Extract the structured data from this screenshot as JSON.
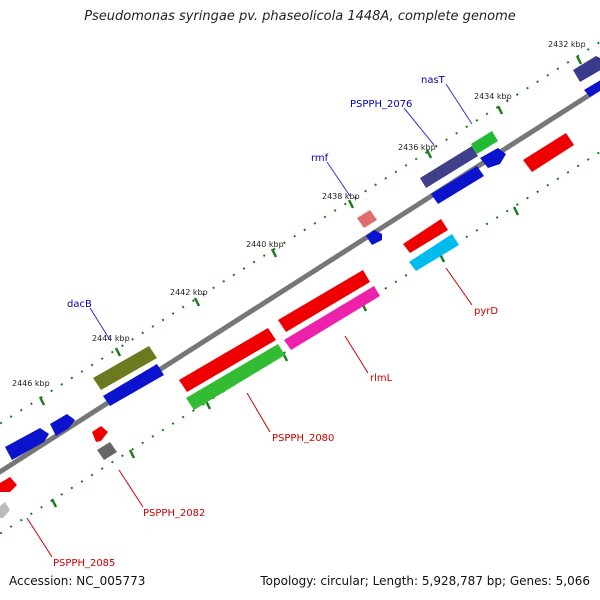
{
  "title": "Pseudomonas syringae pv. phaseolicola 1448A, complete genome",
  "footer": {
    "accession": "Accession: NC_005773",
    "summary": "Topology: circular; Length: 5,928,787 bp; Genes: 5,066"
  },
  "scale_labels": [
    "2432 kbp",
    "2434 kbp",
    "2436 kbp",
    "2438 kbp",
    "2440 kbp",
    "2442 kbp",
    "2444 kbp",
    "2446 kbp"
  ],
  "gene_labels": {
    "nasT": "nasT",
    "psspph_2076": "PSPPH_2076",
    "rmf": "rmf",
    "dacB": "dacB",
    "pyrD": "pyrD",
    "rlmL": "rlmL",
    "psspph_2080": "PSPPH_2080",
    "psspph_2082": "PSPPH_2082",
    "psspph_2085": "PSPPH_2085"
  },
  "colors": {
    "forward_label": "#0000aa",
    "reverse_label": "#cc0000",
    "backbone": "#777777",
    "tick": "#1e7a1e"
  }
}
